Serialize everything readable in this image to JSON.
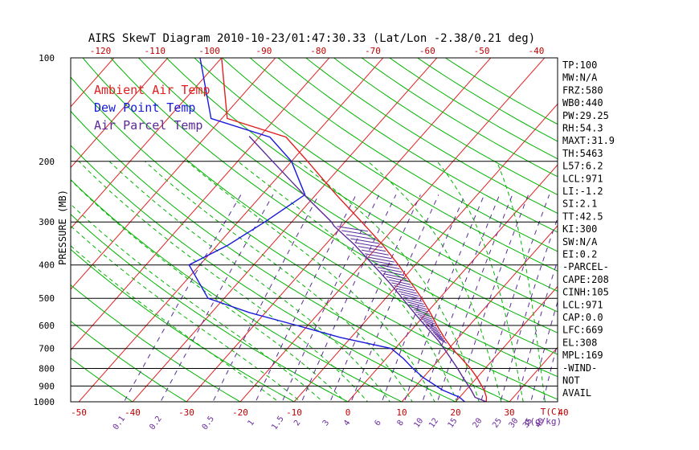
{
  "chart_data": {
    "type": "line",
    "title": "AIRS SkewT Diagram 2010-10-23/01:47:30.33 (Lat/Lon -2.38/0.21 deg)",
    "ylabel": "PRESSURE (MB)",
    "xlabel": "T(C)",
    "mixing_ratio_unit": "q(g/kg)",
    "ylim": [
      1000,
      100
    ],
    "xlim": [
      -50,
      40
    ],
    "y_scale": "log",
    "skewed": true,
    "pressure_ticks": [
      {
        "p": 100,
        "label": "100"
      },
      {
        "p": 200,
        "label": "200"
      },
      {
        "p": 300,
        "label": "300"
      },
      {
        "p": 400,
        "label": "400"
      },
      {
        "p": 500,
        "label": "500"
      },
      {
        "p": 600,
        "label": "600"
      },
      {
        "p": 700,
        "label": "700"
      },
      {
        "p": 800,
        "label": "800"
      },
      {
        "p": 900,
        "label": "900"
      },
      {
        "p": 1000,
        "label": "1000"
      }
    ],
    "bottom_temp_ticks": [
      {
        "t": -50,
        "label": "-50"
      },
      {
        "t": -40,
        "label": "-40"
      },
      {
        "t": -30,
        "label": "-30"
      },
      {
        "t": -20,
        "label": "-20"
      },
      {
        "t": -10,
        "label": "-10"
      },
      {
        "t": 0,
        "label": "0"
      },
      {
        "t": 10,
        "label": "10"
      },
      {
        "t": 20,
        "label": "20"
      },
      {
        "t": 30,
        "label": "30"
      },
      {
        "t": 40,
        "label": "40"
      }
    ],
    "top_temp_ticks": [
      {
        "t": -120,
        "label": "-120"
      },
      {
        "t": -110,
        "label": "-110"
      },
      {
        "t": -100,
        "label": "-100"
      },
      {
        "t": -90,
        "label": "-90"
      },
      {
        "t": -80,
        "label": "-80"
      },
      {
        "t": -70,
        "label": "-70"
      },
      {
        "t": -60,
        "label": "-60"
      },
      {
        "t": -50,
        "label": "-50"
      },
      {
        "t": -40,
        "label": "-40"
      }
    ],
    "mixing_ratio_labels": [
      {
        "w": 0.1,
        "label": "0.1"
      },
      {
        "w": 0.2,
        "label": "0.2"
      },
      {
        "w": 0.5,
        "label": "0.5"
      },
      {
        "w": 1,
        "label": "1"
      },
      {
        "w": 1.5,
        "label": "1.5"
      },
      {
        "w": 2,
        "label": "2"
      },
      {
        "w": 3,
        "label": "3"
      },
      {
        "w": 4,
        "label": "4"
      },
      {
        "w": 6,
        "label": "6"
      },
      {
        "w": 8,
        "label": "8"
      },
      {
        "w": 10,
        "label": "10"
      },
      {
        "w": 12,
        "label": "12"
      },
      {
        "w": 15,
        "label": "15"
      },
      {
        "w": 20,
        "label": "20"
      },
      {
        "w": 25,
        "label": "25"
      },
      {
        "w": 30,
        "label": "30"
      },
      {
        "w": 35,
        "label": "35"
      },
      {
        "w": 40,
        "label": "40"
      }
    ],
    "legend": [
      {
        "name": "Ambient Air Temp",
        "color": "#e02020"
      },
      {
        "name": "Dew Point Temp",
        "color": "#1a1adc"
      },
      {
        "name": "Air Parcel Temp",
        "color": "#5a2a9a"
      }
    ],
    "legend_position": "top-left",
    "series": [
      {
        "name": "Ambient Air Temp",
        "color": "#e02020",
        "points": [
          [
            1000,
            25.7
          ],
          [
            970,
            25.0
          ],
          [
            925,
            23.4
          ],
          [
            850,
            20.0
          ],
          [
            800,
            17.3
          ],
          [
            750,
            14.1
          ],
          [
            700,
            10.6
          ],
          [
            650,
            7.3
          ],
          [
            600,
            4.0
          ],
          [
            550,
            0.6
          ],
          [
            500,
            -3.3
          ],
          [
            450,
            -7.9
          ],
          [
            400,
            -13.1
          ],
          [
            350,
            -19.3
          ],
          [
            300,
            -27.0
          ],
          [
            250,
            -36.2
          ],
          [
            200,
            -47.0
          ],
          [
            170,
            -55.0
          ],
          [
            150,
            -69.0
          ],
          [
            100,
            -80.0
          ]
        ]
      },
      {
        "name": "Dew Point Temp",
        "color": "#1a1adc",
        "points": [
          [
            1000,
            21.7
          ],
          [
            970,
            20.0
          ],
          [
            925,
            15.7
          ],
          [
            850,
            10.0
          ],
          [
            800,
            6.6
          ],
          [
            750,
            3.3
          ],
          [
            700,
            -0.7
          ],
          [
            650,
            -12.0
          ],
          [
            600,
            -22.0
          ],
          [
            550,
            -33.0
          ],
          [
            500,
            -43.0
          ],
          [
            400,
            -52.0
          ],
          [
            350,
            -48.0
          ],
          [
            300,
            -45.0
          ],
          [
            250,
            -42.0
          ],
          [
            200,
            -50.0
          ],
          [
            170,
            -58.0
          ],
          [
            150,
            -72.0
          ],
          [
            100,
            -84.0
          ]
        ]
      },
      {
        "name": "Air Parcel Temp",
        "color": "#5a2a9a",
        "points": [
          [
            1000,
            25.7
          ],
          [
            971,
            22.9
          ],
          [
            925,
            21.0
          ],
          [
            850,
            17.4
          ],
          [
            800,
            14.9
          ],
          [
            750,
            12.1
          ],
          [
            700,
            9.1
          ],
          [
            669,
            7.1
          ],
          [
            650,
            5.7
          ],
          [
            600,
            1.8
          ],
          [
            550,
            -2.4
          ],
          [
            500,
            -6.9
          ],
          [
            450,
            -11.9
          ],
          [
            400,
            -17.8
          ],
          [
            350,
            -24.5
          ],
          [
            308,
            -31.5
          ],
          [
            300,
            -32.6
          ],
          [
            250,
            -42.2
          ],
          [
            200,
            -53.5
          ],
          [
            169,
            -62.0
          ]
        ]
      }
    ],
    "indices": [
      "TP:100",
      "MW:N/A",
      "FRZ:580",
      "WB0:440",
      "PW:29.25",
      "RH:54.3",
      "MAXT:31.9",
      "TH:5463",
      "L57:6.2",
      "LCL:971",
      "LI:-1.2",
      "SI:2.1",
      "TT:42.5",
      "KI:300",
      "SW:N/A",
      "EI:0.2",
      "-PARCEL-",
      "CAPE:208",
      "CINH:105",
      "LCL:971",
      "CAP:0.0",
      "LFC:669",
      "EL:308",
      "MPL:169",
      "-WIND-",
      "NOT",
      "AVAIL"
    ],
    "grid": true
  },
  "colors": {
    "isotherm": "#e02020",
    "dry_adiabat": "#00b400",
    "moist_adiabat": "#00b400",
    "mixing_ratio": "#5a2a9a",
    "isobar": "#000000",
    "axis_label": "#c00000",
    "mixing_label": "#6a2a9a"
  }
}
